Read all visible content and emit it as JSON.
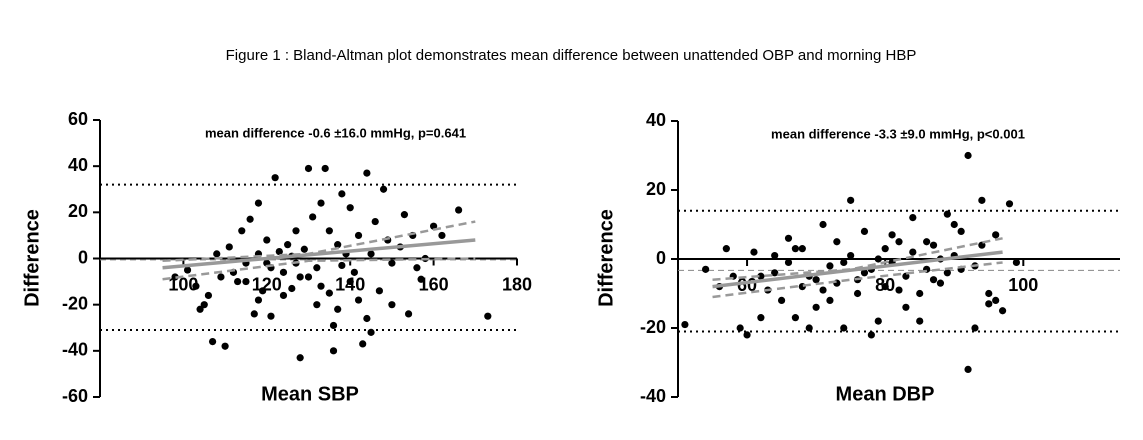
{
  "figure_title": "Figure 1 : Bland-Altman plot demonstrates mean difference between unattended OBP and morning HBP",
  "chart_data": [
    {
      "type": "scatter",
      "annotation": "mean difference -0.6 ±16.0 mmHg, p=0.641",
      "xlabel": "Mean SBP",
      "ylabel": "Difference",
      "xlim": [
        80,
        180
      ],
      "xticks": [
        100,
        120,
        140,
        160,
        180
      ],
      "ylim": [
        -60,
        60
      ],
      "yticks": [
        -60,
        -40,
        -20,
        0,
        20,
        40,
        60
      ],
      "points": {
        "color": "#000000",
        "x": [
          104,
          105,
          107,
          110,
          113,
          115,
          117,
          119,
          122,
          121,
          124,
          126,
          128,
          130,
          132,
          134,
          136,
          136,
          138,
          140,
          141,
          143,
          144,
          145,
          148,
          150,
          153,
          156,
          158,
          160,
          166,
          173,
          108,
          111,
          114,
          116,
          118,
          120,
          123,
          125,
          127,
          129,
          131,
          133,
          135,
          137,
          139,
          142,
          146,
          149,
          152,
          155,
          162,
          98,
          101,
          103,
          106,
          109,
          112,
          115,
          118,
          121,
          124,
          127,
          130,
          133,
          135,
          137,
          140,
          142,
          144,
          147,
          150,
          154,
          157,
          120,
          126,
          132,
          138,
          145,
          128,
          118
        ],
        "y": [
          -22,
          -20,
          -36,
          -38,
          -10,
          -2,
          -24,
          -14,
          35,
          -4,
          -16,
          -13,
          -43,
          39,
          -20,
          39,
          -40,
          -29,
          28,
          22,
          -6,
          -37,
          37,
          -32,
          30,
          -2,
          19,
          -4,
          0,
          14,
          21,
          -25,
          2,
          5,
          12,
          17,
          24,
          8,
          3,
          6,
          12,
          4,
          18,
          24,
          12,
          6,
          2,
          10,
          16,
          8,
          5,
          10,
          10,
          -8,
          -5,
          -12,
          -16,
          -8,
          -6,
          -10,
          -18,
          -25,
          -6,
          -2,
          -8,
          -12,
          -15,
          -22,
          -10,
          -18,
          -26,
          -14,
          -20,
          -24,
          -9,
          -2,
          1,
          -4,
          -3,
          2,
          -8,
          2
        ]
      },
      "reference_lines": [
        {
          "value": 32,
          "style": "dotted",
          "color": "#000000"
        },
        {
          "value": -0.6,
          "style": "dashed",
          "color": "#888888"
        },
        {
          "value": -31,
          "style": "dotted",
          "color": "#000000"
        }
      ],
      "fit": {
        "x": [
          95,
          170
        ],
        "y": [
          -4,
          8
        ],
        "color": "#999999"
      },
      "ci": [
        {
          "x": [
            95,
            130,
            170
          ],
          "y": [
            -1,
            2,
            16
          ],
          "color": "#999999"
        },
        {
          "x": [
            95,
            130,
            170
          ],
          "y": [
            -9,
            -1,
            0
          ],
          "color": "#999999"
        }
      ]
    },
    {
      "type": "scatter",
      "annotation": "mean difference -3.3 ±9.0 mmHg, p<0.001",
      "xlabel": "Mean DBP",
      "ylabel": "Difference",
      "xlim": [
        50,
        114
      ],
      "xticks": [
        60,
        80,
        100
      ],
      "ylim": [
        -40,
        40
      ],
      "yticks": [
        -40,
        -20,
        0,
        20,
        40
      ],
      "points": {
        "color": "#000000",
        "x": [
          51,
          54,
          57,
          59,
          60,
          62,
          64,
          65,
          66,
          67,
          68,
          69,
          70,
          71,
          72,
          73,
          74,
          75,
          76,
          77,
          78,
          79,
          80,
          81,
          82,
          83,
          84,
          85,
          86,
          87,
          88,
          89,
          90,
          91,
          92,
          93,
          94,
          95,
          96,
          97,
          98,
          99,
          92,
          58,
          61,
          63,
          66,
          68,
          70,
          72,
          73,
          75,
          77,
          78,
          80,
          81,
          83,
          84,
          85,
          86,
          87,
          88,
          89,
          90,
          91,
          93,
          94,
          95,
          96,
          62,
          64,
          69,
          71,
          74,
          76,
          79,
          82,
          56,
          67
        ],
        "y": [
          -19,
          -3,
          3,
          -20,
          -22,
          -17,
          -4,
          -12,
          6,
          -17,
          -8,
          -20,
          -6,
          10,
          -12,
          5,
          -20,
          17,
          -10,
          -4,
          -22,
          -18,
          3,
          7,
          -9,
          -14,
          12,
          -18,
          5,
          -6,
          0,
          13,
          10,
          -3,
          30,
          -20,
          17,
          -10,
          -12,
          -15,
          16,
          -1,
          -32,
          -5,
          2,
          -9,
          -1,
          3,
          -14,
          -2,
          -7,
          1,
          8,
          -3,
          -8,
          -1,
          -5,
          2,
          -10,
          -3,
          4,
          -7,
          -4,
          1,
          8,
          -2,
          4,
          -13,
          7,
          -5,
          1,
          -5,
          -9,
          -1,
          -6,
          0,
          5,
          -8,
          3
        ]
      },
      "reference_lines": [
        {
          "value": 14,
          "style": "dotted",
          "color": "#000000"
        },
        {
          "value": -3.3,
          "style": "dashed",
          "color": "#888888"
        },
        {
          "value": -21,
          "style": "dotted",
          "color": "#000000"
        }
      ],
      "fit": {
        "x": [
          55,
          97
        ],
        "y": [
          -8,
          2
        ],
        "color": "#999999"
      },
      "ci": [
        {
          "x": [
            55,
            75,
            97
          ],
          "y": [
            -6,
            -3,
            6
          ],
          "color": "#999999"
        },
        {
          "x": [
            55,
            75,
            97
          ],
          "y": [
            -11,
            -6,
            -1
          ],
          "color": "#999999"
        }
      ]
    }
  ]
}
